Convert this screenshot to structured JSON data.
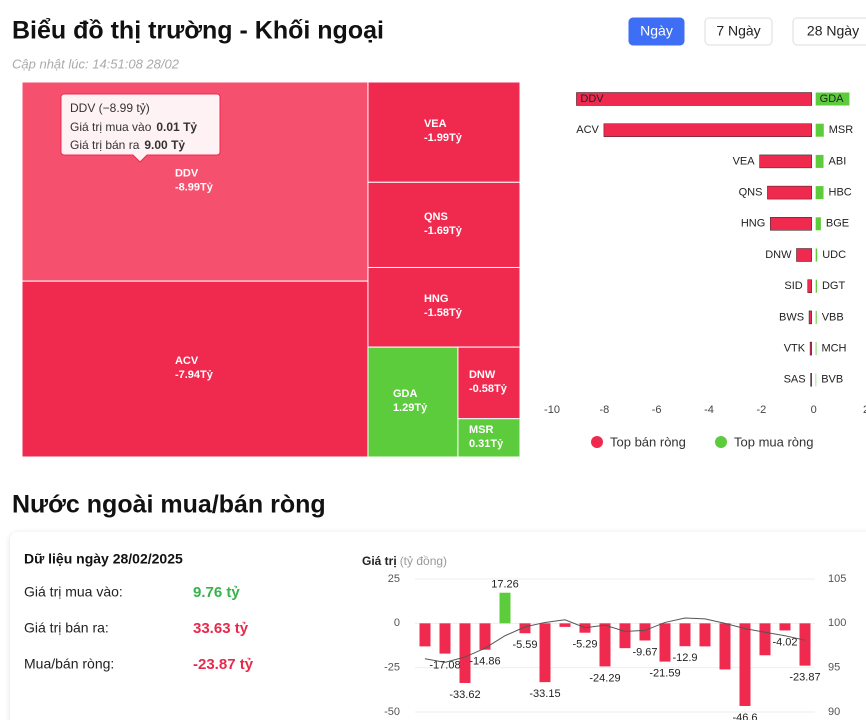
{
  "header": {
    "title": "Biểu đồ thị trường - Khối ngoại",
    "updated": "Cập nhật lúc: 14:51:08 28/02",
    "tabs": [
      "Ngày",
      "7 Ngày",
      "28 Ngày"
    ],
    "active_tab": 0
  },
  "chart_data": [
    {
      "type": "treemap",
      "categories": [
        "DDV",
        "ACV",
        "VEA",
        "QNS",
        "HNG",
        "GDA",
        "DNW",
        "MSR"
      ],
      "values": [
        -8.99,
        -7.94,
        -1.99,
        -1.69,
        -1.58,
        1.29,
        -0.58,
        0.31
      ],
      "value_labels": [
        "-8.99Tỷ",
        "-7.94Tỷ",
        "-1.99Tỷ",
        "-1.69Tỷ",
        "-1.58Tỷ",
        "1.29Tỷ",
        "-0.58Tỷ",
        "0.31Tỷ"
      ],
      "colors": {
        "negative": "#f0294f",
        "positive": "#5ccc3c",
        "highlight": "#f5506e"
      },
      "highlight": 0,
      "tooltip": {
        "title": "DDV (−8.99 tỷ)",
        "lines": [
          {
            "label": "Giá trị mua vào",
            "value": "0.01 Tỷ"
          },
          {
            "label": "Giá trị bán ra",
            "value": "9.00 Tỷ"
          }
        ]
      }
    },
    {
      "type": "diverging_bar",
      "series": [
        {
          "name": "Top bán ròng",
          "color": "#f0294f",
          "categories": [
            "DDV",
            "ACV",
            "VEA",
            "QNS",
            "HNG",
            "DNW",
            "SID",
            "BWS",
            "VTK",
            "SAS"
          ],
          "values": [
            -8.99,
            -7.94,
            -1.99,
            -1.69,
            -1.58,
            -0.58,
            -0.15,
            -0.1,
            -0.06,
            -0.04
          ]
        },
        {
          "name": "Top mua ròng",
          "color": "#5ccc3c",
          "categories": [
            "GDA",
            "MSR",
            "ABI",
            "HBC",
            "BGE",
            "UDC",
            "DGT",
            "VBB",
            "MCH",
            "BVB"
          ],
          "values": [
            1.29,
            0.31,
            0.3,
            0.3,
            0.2,
            0.06,
            0.05,
            0.04,
            0.03,
            0.02
          ]
        }
      ],
      "xlim": [
        -10,
        2
      ],
      "xticks": [
        -10,
        -8,
        -6,
        -4,
        -2,
        0,
        2
      ]
    },
    {
      "type": "bar_line",
      "ylabel": "Giá trị",
      "yunit": "(tỷ đồng)",
      "series": [
        {
          "colors": {
            "positive": "#5ccc3c",
            "negative": "#f0294f"
          },
          "values": [
            -13,
            -17.08,
            -33.62,
            -14.86,
            17.26,
            -5.59,
            -33.15,
            -2,
            -5.29,
            -24.29,
            -14,
            -9.67,
            -21.59,
            -12.9,
            -13,
            -26,
            -46.6,
            -18,
            -4.02,
            -23.87
          ],
          "value_labels": [
            null,
            "-17.08",
            "-33.62",
            "-14.86",
            "17.26",
            "-5.59",
            "-33.15",
            null,
            "-5.29",
            "-24.29",
            null,
            "-9.67",
            "-21.59",
            "-12.9",
            null,
            null,
            "-46.6",
            null,
            "-4.02",
            "-23.87"
          ]
        },
        {
          "color": "#555555",
          "axis": "y2",
          "values": [
            96,
            95.6,
            96.2,
            97.2,
            98.6,
            99.6,
            100.1,
            100.4,
            99.5,
            99.8,
            99.1,
            99.2,
            100.1,
            100.6,
            100.5,
            100,
            99.4,
            99,
            98.6,
            98.1
          ]
        }
      ],
      "ylim": [
        -50,
        25
      ],
      "yticks": [
        -50,
        -25,
        0,
        25
      ],
      "y2lim": [
        90,
        105
      ],
      "y2ticks": [
        90,
        95,
        100,
        105
      ]
    }
  ],
  "section_title": "Nước ngoài mua/bán ròng",
  "summary": {
    "title": "Dữ liệu ngày 28/02/2025",
    "rows": [
      {
        "label": "Giá trị mua vào:",
        "value": "9.76 tỷ",
        "color": "#37b24d"
      },
      {
        "label": "Giá trị bán ra:",
        "value": "33.63 tỷ",
        "color": "#e8294c"
      },
      {
        "label": "Mua/bán ròng:",
        "value": "-23.87 tỷ",
        "color": "#e8294c"
      }
    ]
  }
}
